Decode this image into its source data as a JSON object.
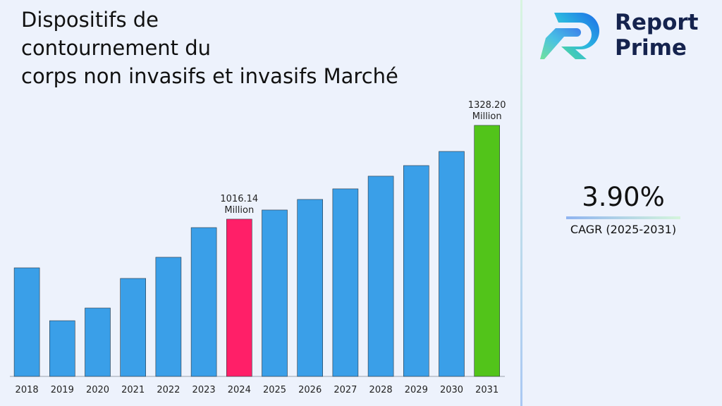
{
  "chart_data": {
    "type": "bar",
    "title_lines": [
      "Dispositifs de",
      "contournement du",
      "corps non invasifs et invasifs Marché"
    ],
    "categories": [
      "2018",
      "2019",
      "2020",
      "2021",
      "2022",
      "2023",
      "2024",
      "2025",
      "2026",
      "2027",
      "2028",
      "2029",
      "2030",
      "2031"
    ],
    "values": [
      854.2,
      678.3,
      720.5,
      819.0,
      889.4,
      988.0,
      1016.14,
      1046.6,
      1081.8,
      1117.0,
      1159.2,
      1194.4,
      1241.4,
      1328.2
    ],
    "value_labels": [
      null,
      null,
      null,
      null,
      null,
      null,
      "1016.14 Million",
      null,
      null,
      null,
      null,
      null,
      null,
      "1328.20 Million"
    ],
    "colors": [
      "#3a9fe8",
      "#3a9fe8",
      "#3a9fe8",
      "#3a9fe8",
      "#3a9fe8",
      "#3a9fe8",
      "#ff1f68",
      "#3a9fe8",
      "#3a9fe8",
      "#3a9fe8",
      "#3a9fe8",
      "#3a9fe8",
      "#3a9fe8",
      "#52c41a"
    ],
    "ylim": [
      493,
      1417
    ]
  },
  "logo": {
    "line1": "Report",
    "line2": "Prime"
  },
  "kpi": {
    "value": "3.90%",
    "label": "CAGR (2025-2031)"
  }
}
